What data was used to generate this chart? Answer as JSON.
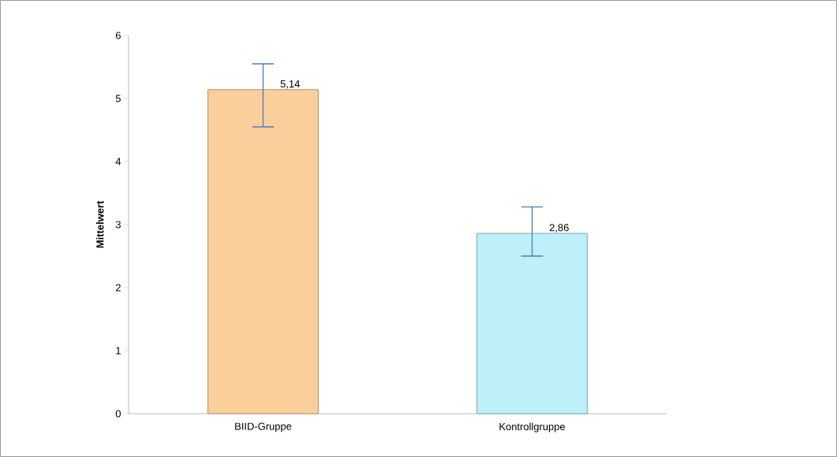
{
  "chart_data": {
    "type": "bar",
    "ylabel": "Mittelwert",
    "categories": [
      "BIID-Gruppe",
      "Kontrollgruppe"
    ],
    "values": [
      5.14,
      2.86
    ],
    "value_labels": [
      "5,14",
      "2,86"
    ],
    "errors": [
      [
        4.55,
        5.55
      ],
      [
        2.5,
        3.28
      ]
    ],
    "colors": [
      "#fbcf9c",
      "#bdf0f8"
    ],
    "ylim": [
      0,
      6
    ],
    "yticks": [
      0,
      1,
      2,
      3,
      4,
      5,
      6
    ]
  }
}
